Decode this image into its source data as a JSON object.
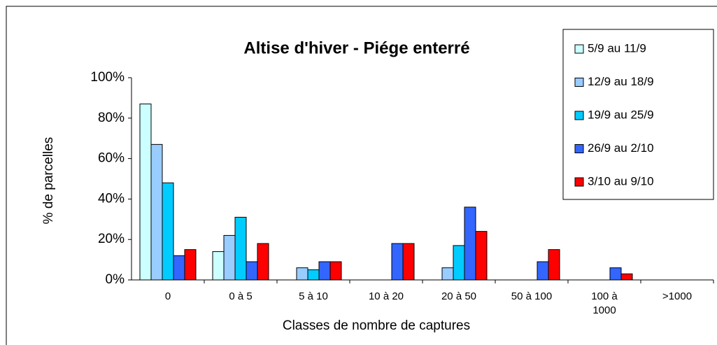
{
  "chart_data": {
    "type": "bar",
    "title": "Altise d'hiver  - Piége enterré",
    "x_label": "Classes de nombre de captures",
    "y_label": "% de parcelles",
    "categories": [
      "0",
      "0 à 5",
      "5 à 10",
      "10 à 20",
      "20 à 50",
      "50 à 100",
      "100 à\n1000",
      ">1000"
    ],
    "series": [
      {
        "name": "5/9 au 11/9",
        "color": "#ccffff",
        "values": [
          87,
          14,
          0,
          0,
          0,
          0,
          0,
          0
        ]
      },
      {
        "name": "12/9 au 18/9",
        "color": "#99ccff",
        "values": [
          67,
          22,
          6,
          0,
          6,
          0,
          0,
          0
        ]
      },
      {
        "name": "19/9 au 25/9",
        "color": "#00ccff",
        "values": [
          48,
          31,
          5,
          0,
          17,
          0,
          0,
          0
        ]
      },
      {
        "name": "26/9 au 2/10",
        "color": "#3366ff",
        "values": [
          12,
          9,
          9,
          18,
          36,
          9,
          6,
          0
        ]
      },
      {
        "name": "3/10 au 9/10",
        "color": "#ff0000",
        "values": [
          15,
          18,
          9,
          18,
          24,
          15,
          3,
          0
        ]
      }
    ],
    "ylim": [
      0,
      100
    ],
    "yticks": [
      {
        "value": 0,
        "label": "0%"
      },
      {
        "value": 20,
        "label": "20%"
      },
      {
        "value": 40,
        "label": "40%"
      },
      {
        "value": 60,
        "label": "60%"
      },
      {
        "value": 80,
        "label": "80%"
      },
      {
        "value": 100,
        "label": "100%"
      }
    ],
    "legend": "upper right",
    "grid": false
  }
}
